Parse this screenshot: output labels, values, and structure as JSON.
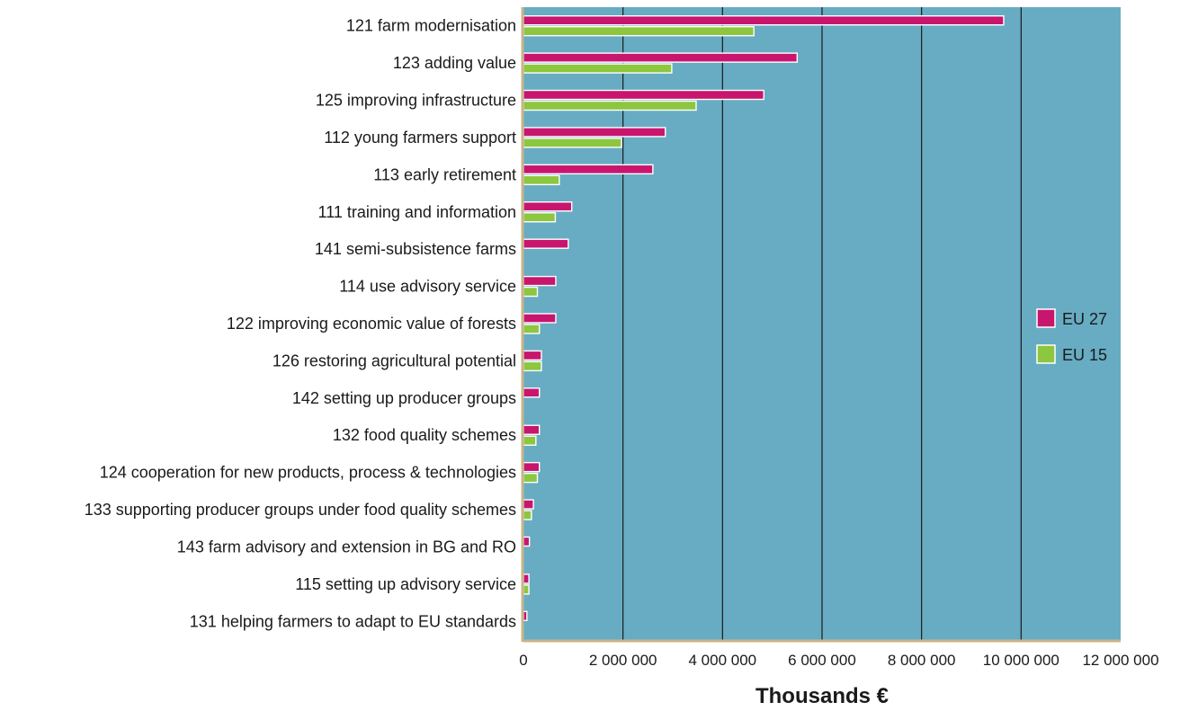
{
  "chart_data": {
    "type": "bar",
    "orientation": "horizontal",
    "categories": [
      "121 farm modernisation",
      "123 adding value",
      "125 improving infrastructure",
      "112 young farmers support",
      "113 early retirement",
      "111 training and information",
      "141 semi-subsistence farms",
      "114 use advisory service",
      "122 improving economic value of forests",
      "126 restoring agricultural potential",
      "142 setting up producer groups",
      "132 food quality schemes",
      "124 cooperation for new products, process & technologies",
      "133 supporting producer groups under food quality schemes",
      "143 farm advisory and extension in BG and RO",
      "115 setting up advisory service",
      "131 helping farmers to adapt to EU standards"
    ],
    "series": [
      {
        "name": "EU 27",
        "color": "#c8156e",
        "values": [
          9650000,
          5500000,
          4830000,
          2850000,
          2600000,
          970000,
          900000,
          650000,
          650000,
          360000,
          320000,
          320000,
          320000,
          200000,
          120000,
          110000,
          70000
        ]
      },
      {
        "name": "EU 15",
        "color": "#8dc63f",
        "values": [
          4630000,
          2980000,
          3470000,
          1970000,
          720000,
          640000,
          0,
          280000,
          320000,
          360000,
          0,
          250000,
          280000,
          160000,
          0,
          110000,
          0
        ]
      }
    ],
    "xlabel": "Thousands €",
    "xlim": [
      0,
      12000000
    ],
    "xticks": [
      0,
      2000000,
      4000000,
      6000000,
      8000000,
      10000000,
      12000000
    ],
    "xtick_labels": [
      "0",
      "2 000 000",
      "4 000 000",
      "6 000 000",
      "8 000 000",
      "10 000 000",
      "12 000 000"
    ],
    "grid": "vertical",
    "legend_position": "right",
    "plot_background": "#67acc3",
    "bar_outline": "#ffffff"
  }
}
